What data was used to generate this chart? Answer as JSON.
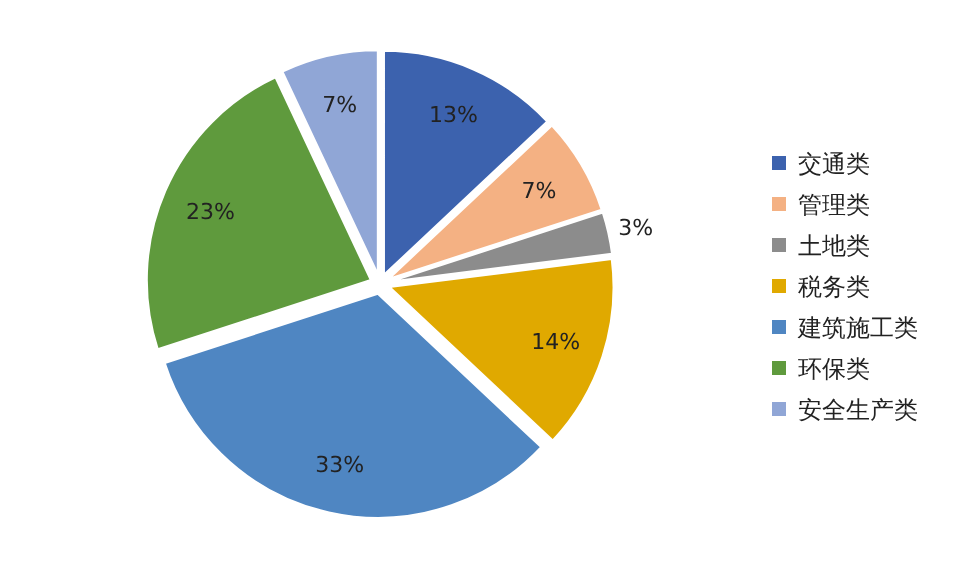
{
  "chart_data": {
    "type": "pie",
    "categories": [
      "交通类",
      "管理类",
      "土地类",
      "税务类",
      "建筑施工类",
      "环保类",
      "安全生产类"
    ],
    "values": [
      13,
      7,
      3,
      14,
      33,
      23,
      7
    ],
    "colors": [
      "#3c62ae",
      "#f4b183",
      "#8c8c8c",
      "#e0a900",
      "#4f86c2",
      "#5f9a3d",
      "#90a6d6"
    ],
    "value_labels": [
      "13%",
      "7%",
      "3%",
      "14%",
      "33%",
      "23%",
      "7%"
    ],
    "legend": "right"
  }
}
